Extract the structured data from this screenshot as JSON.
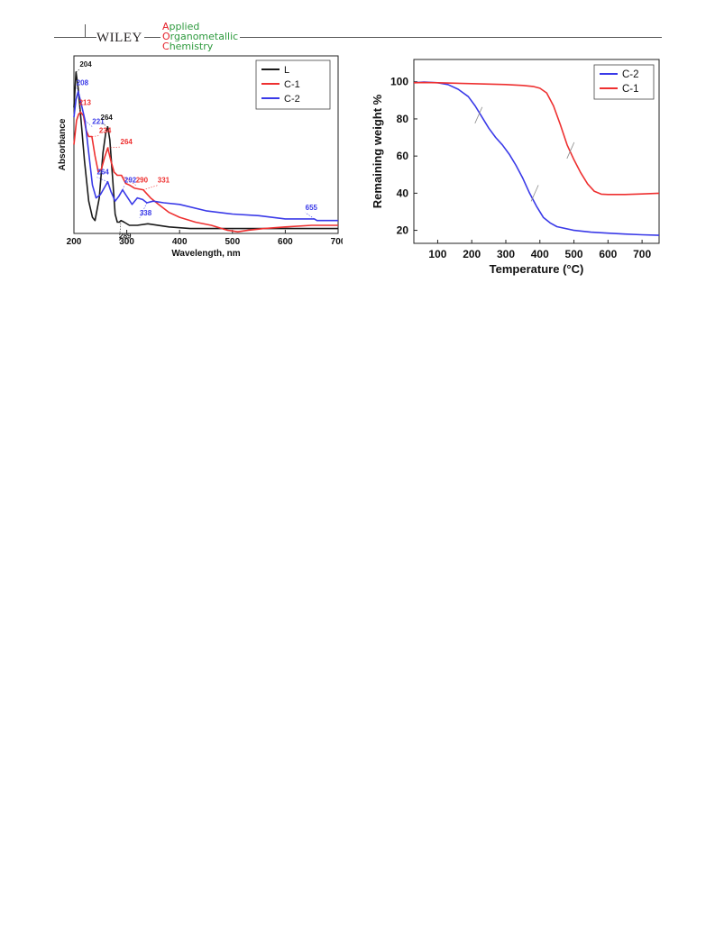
{
  "header": {
    "brand": "WILEY",
    "journal_lines": [
      {
        "initial": "A",
        "rest": "pplied"
      },
      {
        "initial": "O",
        "rest": "rganometallic"
      },
      {
        "initial": "C",
        "rest": "hemistry"
      }
    ]
  },
  "chart_data": [
    {
      "type": "line",
      "title": "",
      "xlabel": "Wavelength, nm",
      "ylabel": "Absorbance",
      "xlim": [
        200,
        700
      ],
      "xticks": [
        200,
        300,
        400,
        500,
        600,
        700
      ],
      "ylim": [
        0,
        1.1
      ],
      "y_tick_labels": false,
      "grid": false,
      "legend": "top-right",
      "colors": {
        "L": "#1a1a1a",
        "C-1": "#ee3030",
        "C-2": "#3a3ae8"
      },
      "series": [
        {
          "name": "L",
          "x": [
            200,
            204,
            208,
            213,
            220,
            228,
            235,
            240,
            248,
            255,
            260,
            264,
            268,
            273,
            278,
            282,
            286,
            289,
            295,
            305,
            320,
            340,
            380,
            420,
            460,
            500,
            550,
            600,
            650,
            700
          ],
          "y": [
            0.78,
            1.0,
            0.9,
            0.72,
            0.45,
            0.2,
            0.1,
            0.08,
            0.22,
            0.5,
            0.62,
            0.66,
            0.58,
            0.35,
            0.12,
            0.07,
            0.07,
            0.08,
            0.07,
            0.05,
            0.05,
            0.06,
            0.04,
            0.03,
            0.03,
            0.03,
            0.03,
            0.03,
            0.03,
            0.03
          ]
        },
        {
          "name": "C-1",
          "x": [
            200,
            205,
            209,
            213,
            218,
            223,
            228,
            234,
            240,
            246,
            252,
            258,
            264,
            270,
            276,
            282,
            290,
            298,
            305,
            315,
            331,
            345,
            360,
            380,
            400,
            430,
            460,
            490,
            510,
            530,
            560,
            600,
            650,
            700
          ],
          "y": [
            0.55,
            0.7,
            0.74,
            0.75,
            0.73,
            0.64,
            0.6,
            0.6,
            0.48,
            0.38,
            0.4,
            0.47,
            0.53,
            0.45,
            0.38,
            0.36,
            0.36,
            0.31,
            0.3,
            0.28,
            0.27,
            0.22,
            0.18,
            0.13,
            0.1,
            0.07,
            0.05,
            0.02,
            0.01,
            0.02,
            0.03,
            0.04,
            0.05,
            0.05
          ]
        },
        {
          "name": "C-2",
          "x": [
            200,
            204,
            208,
            214,
            221,
            228,
            235,
            242,
            250,
            257,
            264,
            270,
            278,
            285,
            292,
            300,
            310,
            320,
            330,
            338,
            350,
            370,
            400,
            450,
            500,
            550,
            600,
            655,
            660,
            670,
            700
          ],
          "y": [
            0.72,
            0.83,
            0.88,
            0.8,
            0.7,
            0.5,
            0.3,
            0.22,
            0.24,
            0.28,
            0.32,
            0.26,
            0.2,
            0.23,
            0.27,
            0.23,
            0.18,
            0.22,
            0.21,
            0.19,
            0.2,
            0.19,
            0.18,
            0.14,
            0.12,
            0.11,
            0.09,
            0.09,
            0.08,
            0.08,
            0.08
          ]
        }
      ],
      "annotations": [
        {
          "text": "204",
          "x": 204,
          "series": "L"
        },
        {
          "text": "208",
          "x": 208,
          "series": "C-2"
        },
        {
          "text": "213",
          "x": 213,
          "series": "C-1"
        },
        {
          "text": "221",
          "x": 221,
          "series": "C-2"
        },
        {
          "text": "234",
          "x": 234,
          "series": "C-1"
        },
        {
          "text": "264",
          "x": 264,
          "series": "L"
        },
        {
          "text": "264",
          "x": 264,
          "series": "C-1"
        },
        {
          "text": "264",
          "x": 264,
          "series": "C-2"
        },
        {
          "text": "290",
          "x": 290,
          "series": "C-1"
        },
        {
          "text": "292",
          "x": 292,
          "series": "C-2"
        },
        {
          "text": "331",
          "x": 331,
          "series": "C-1"
        },
        {
          "text": "289",
          "x": 289,
          "series": "L"
        },
        {
          "text": "338",
          "x": 338,
          "series": "C-2"
        },
        {
          "text": "655",
          "x": 655,
          "series": "C-2"
        }
      ]
    },
    {
      "type": "line",
      "title": "",
      "xlabel": "Temperature (°C)",
      "ylabel": "Remaining weight %",
      "xlim": [
        30,
        750
      ],
      "xticks": [
        100,
        200,
        300,
        400,
        500,
        600,
        700
      ],
      "ylim": [
        13,
        112
      ],
      "yticks": [
        20,
        40,
        60,
        80,
        100
      ],
      "grid": false,
      "legend": "top-right",
      "colors": {
        "C-2": "#3a3ae8",
        "C-1": "#ee3030"
      },
      "series": [
        {
          "name": "C-2",
          "x": [
            30,
            60,
            100,
            130,
            160,
            190,
            210,
            230,
            250,
            270,
            290,
            310,
            330,
            350,
            370,
            390,
            410,
            430,
            450,
            500,
            550,
            600,
            650,
            700,
            750
          ],
          "y": [
            99.5,
            99.8,
            99.5,
            98.5,
            96,
            92,
            87,
            81,
            75,
            70,
            66,
            61,
            55,
            48,
            40,
            33,
            27,
            24,
            22,
            20,
            19,
            18.5,
            18,
            17.6,
            17.3
          ]
        },
        {
          "name": "C-1",
          "x": [
            30,
            60,
            100,
            200,
            300,
            350,
            380,
            400,
            420,
            440,
            460,
            480,
            500,
            520,
            540,
            560,
            580,
            600,
            650,
            700,
            750
          ],
          "y": [
            99.5,
            99.6,
            99.5,
            99,
            98.5,
            98,
            97.5,
            96.5,
            94,
            87,
            77,
            66,
            58,
            51,
            45,
            41,
            39.5,
            39.3,
            39.3,
            39.6,
            40
          ]
        }
      ],
      "annotations": []
    }
  ]
}
